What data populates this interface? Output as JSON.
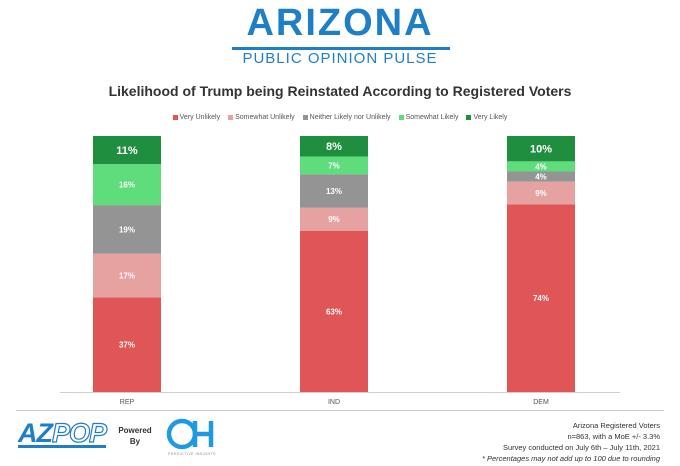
{
  "header": {
    "title": "ARIZONA",
    "subtitle": "PUBLIC OPINION PULSE"
  },
  "chart_data": {
    "type": "bar",
    "stacked": true,
    "title": "Likelihood of Trump being Reinstated According to Registered Voters",
    "categories": [
      "REP",
      "IND",
      "DEM"
    ],
    "series": [
      {
        "name": "Very Unlikely",
        "color": "#e05556",
        "values": [
          37,
          63,
          74
        ],
        "labels": [
          "37%",
          "63%",
          "74%"
        ]
      },
      {
        "name": "Somewhat Unlikely",
        "color": "#e6a1a1",
        "values": [
          17,
          9,
          9
        ],
        "labels": [
          "17%",
          "9%",
          "9%"
        ]
      },
      {
        "name": "Neither Likely nor Unlikely",
        "color": "#949494",
        "values": [
          19,
          13,
          4
        ],
        "labels": [
          "19%",
          "13%",
          "4%"
        ]
      },
      {
        "name": "Somewhat Likely",
        "color": "#5fdd7d",
        "values": [
          16,
          7,
          4
        ],
        "labels": [
          "16%",
          "7%",
          "4%"
        ]
      },
      {
        "name": "Very Likely",
        "color": "#1f8f3f",
        "values": [
          11,
          8,
          10
        ],
        "labels": [
          "11%",
          "8%",
          "10%"
        ]
      }
    ],
    "ylim": [
      0,
      100
    ],
    "xlabel": "",
    "ylabel": "",
    "legend_position": "top"
  },
  "footer": {
    "logo_az": "AZ",
    "logo_pop": "POP",
    "powered_by": "Powered By",
    "oh_logo": "OH",
    "oh_caption": "PREDICTIVE INSIGHTS",
    "notes": [
      "Arizona Registered Voters",
      "n=863, with a MoE +/- 3.3%",
      "Survey conducted on July 6th – July 11th, 2021",
      "* Percentages may not add up to 100 due to rounding"
    ]
  }
}
